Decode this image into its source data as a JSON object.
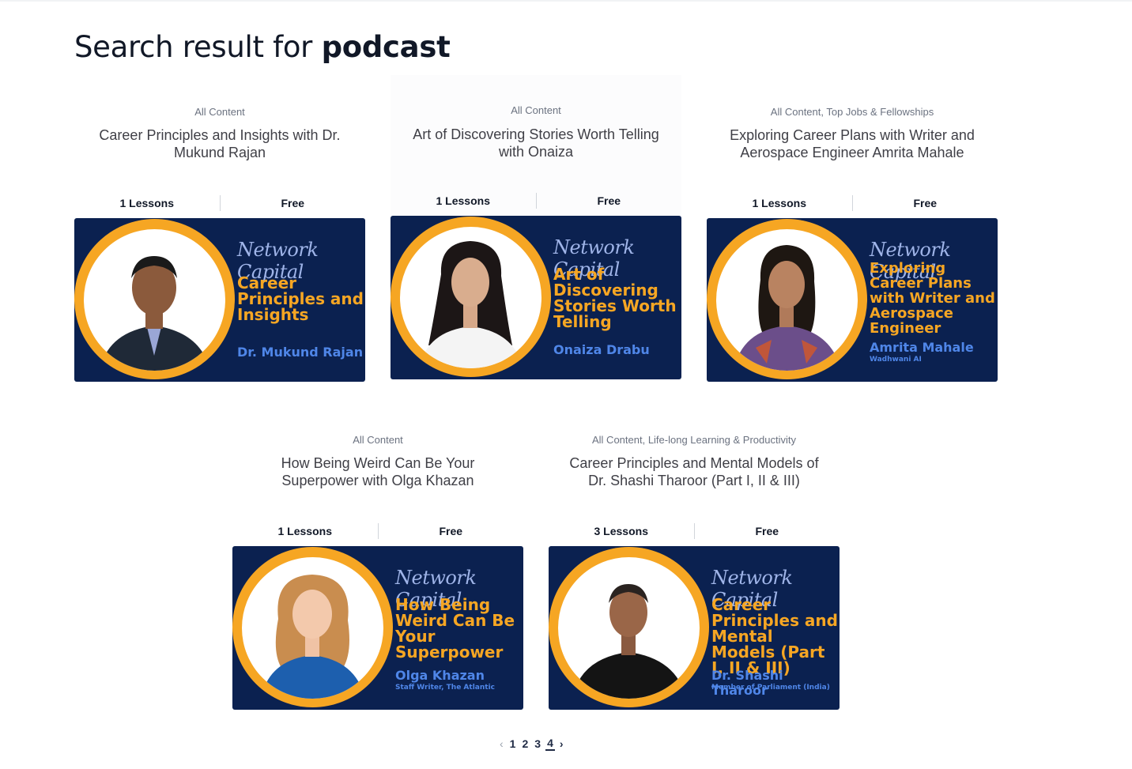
{
  "search": {
    "title_prefix": "Search result for",
    "query": "podcast"
  },
  "colors": {
    "thumb_bg": "#0b2150",
    "ring": "#f6a623",
    "headline": "#f6a623",
    "speaker": "#4f86e8"
  },
  "brand_name": "Network Capital",
  "cards": [
    {
      "category": "All Content",
      "title": "Career Principles and Insights with Dr. Mukund Rajan",
      "lessons": "1 Lessons",
      "price": "Free",
      "thumb_title": "Career Principles and Insights",
      "speaker": "Dr. Mukund Rajan",
      "speaker_role": ""
    },
    {
      "category": "All Content",
      "title": "Art of Discovering Stories Worth Telling with Onaiza",
      "lessons": "1 Lessons",
      "price": "Free",
      "thumb_title": "Art of Discovering Stories Worth Telling",
      "speaker": "Onaiza Drabu",
      "speaker_role": ""
    },
    {
      "category": "All Content, Top Jobs & Fellowships",
      "title": "Exploring Career Plans with Writer and Aerospace Engineer Amrita Mahale",
      "lessons": "1 Lessons",
      "price": "Free",
      "thumb_title": "Exploring Career Plans with Writer and Aerospace Engineer",
      "speaker": "Amrita Mahale",
      "speaker_role": "Wadhwani AI"
    },
    {
      "category": "All Content",
      "title": "How Being Weird Can Be Your Superpower with Olga Khazan",
      "lessons": "1 Lessons",
      "price": "Free",
      "thumb_title": "How Being Weird Can Be Your Superpower",
      "speaker": "Olga Khazan",
      "speaker_role": "Staff Writer, The Atlantic"
    },
    {
      "category": "All Content, Life-long Learning & Productivity",
      "title": "Career Principles and Mental Models of Dr. Shashi Tharoor (Part I, II & III)",
      "lessons": "3 Lessons",
      "price": "Free",
      "thumb_title": "Career Principles and Mental Models (Part I, II & III)",
      "speaker": "Dr. Shashi Tharoor",
      "speaker_role": "Member of Parliament (India)"
    }
  ],
  "pagination": {
    "prev": "‹",
    "pages": [
      "1",
      "2",
      "3",
      "4"
    ],
    "current": "4",
    "next": "›"
  }
}
